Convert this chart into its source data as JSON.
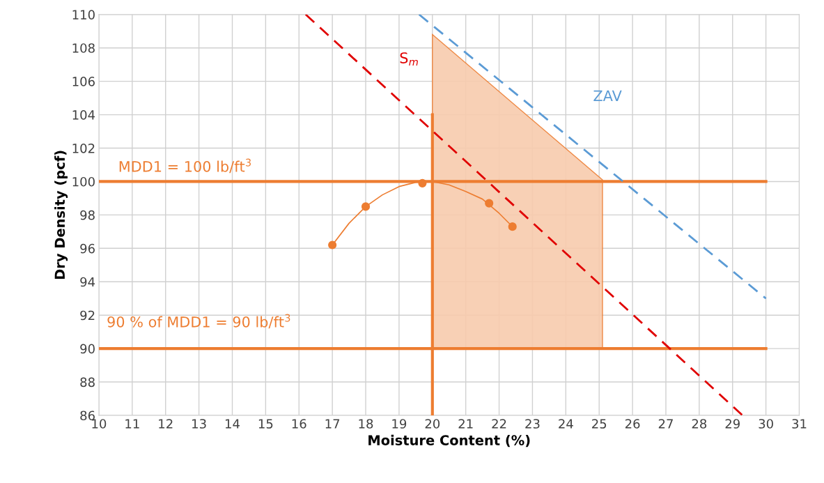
{
  "chart_data": {
    "type": "line",
    "xlabel": "Moisture Content (%)",
    "ylabel": "Dry Density (pcf)",
    "xlim": [
      10,
      31
    ],
    "xticks": [
      10,
      11,
      12,
      13,
      14,
      15,
      16,
      17,
      18,
      19,
      20,
      21,
      22,
      23,
      24,
      25,
      26,
      27,
      28,
      29,
      30,
      31
    ],
    "ylim": [
      86,
      110
    ],
    "yticks": [
      86,
      88,
      90,
      92,
      94,
      96,
      98,
      100,
      102,
      104,
      106,
      108,
      110
    ],
    "grid": true,
    "series": [
      {
        "type": "area",
        "color": "#f8cbad",
        "x": [
          20,
          20,
          25.1,
          25.1
        ],
        "values": [
          90,
          108.8,
          100.1,
          90
        ]
      },
      {
        "name": "MDD1 = 100 lb/ft$^{3}$",
        "color": "#ed7d31",
        "x": [
          10,
          30
        ],
        "values": [
          100,
          100
        ],
        "marker": "none",
        "line_style": "solid"
      },
      {
        "name": "90 % of MDD1 = 90 lb/ft$^{3}$",
        "color": "#ed7d31",
        "x": [
          10,
          30
        ],
        "values": [
          90,
          90
        ],
        "marker": "none",
        "line_style": "solid"
      },
      {
        "color": "#ed7d31",
        "x": [
          20,
          20
        ],
        "values": [
          86,
          104
        ],
        "marker": "none",
        "line_style": "solid"
      },
      {
        "name": "S$_{m}$",
        "color": "#e00000",
        "x": [
          16.2,
          29.3
        ],
        "values": [
          110,
          86
        ],
        "marker": "none",
        "line_style": "dashed"
      },
      {
        "name": "ZAV",
        "color": "#5b9bd5",
        "x": [
          19.6,
          30
        ],
        "values": [
          110,
          93
        ],
        "marker": "none",
        "line_style": "dashed"
      },
      {
        "color": "#ed7d31",
        "x": [
          17,
          17.5,
          18,
          18.5,
          19,
          19.5,
          20,
          20.5,
          21,
          21.5,
          22,
          22.4
        ],
        "values": [
          96.2,
          97.5,
          98.5,
          99.2,
          99.7,
          99.95,
          100,
          99.8,
          99.4,
          98.95,
          98.1,
          97.3
        ],
        "marker": "none",
        "line_style": "solid"
      },
      {
        "type": "scatter",
        "color": "#ed7d31",
        "x": [
          17,
          18,
          19.7,
          21.7,
          22.4
        ],
        "values": [
          96.2,
          98.5,
          99.9,
          98.7,
          97.3
        ],
        "marker": "circle"
      }
    ]
  }
}
